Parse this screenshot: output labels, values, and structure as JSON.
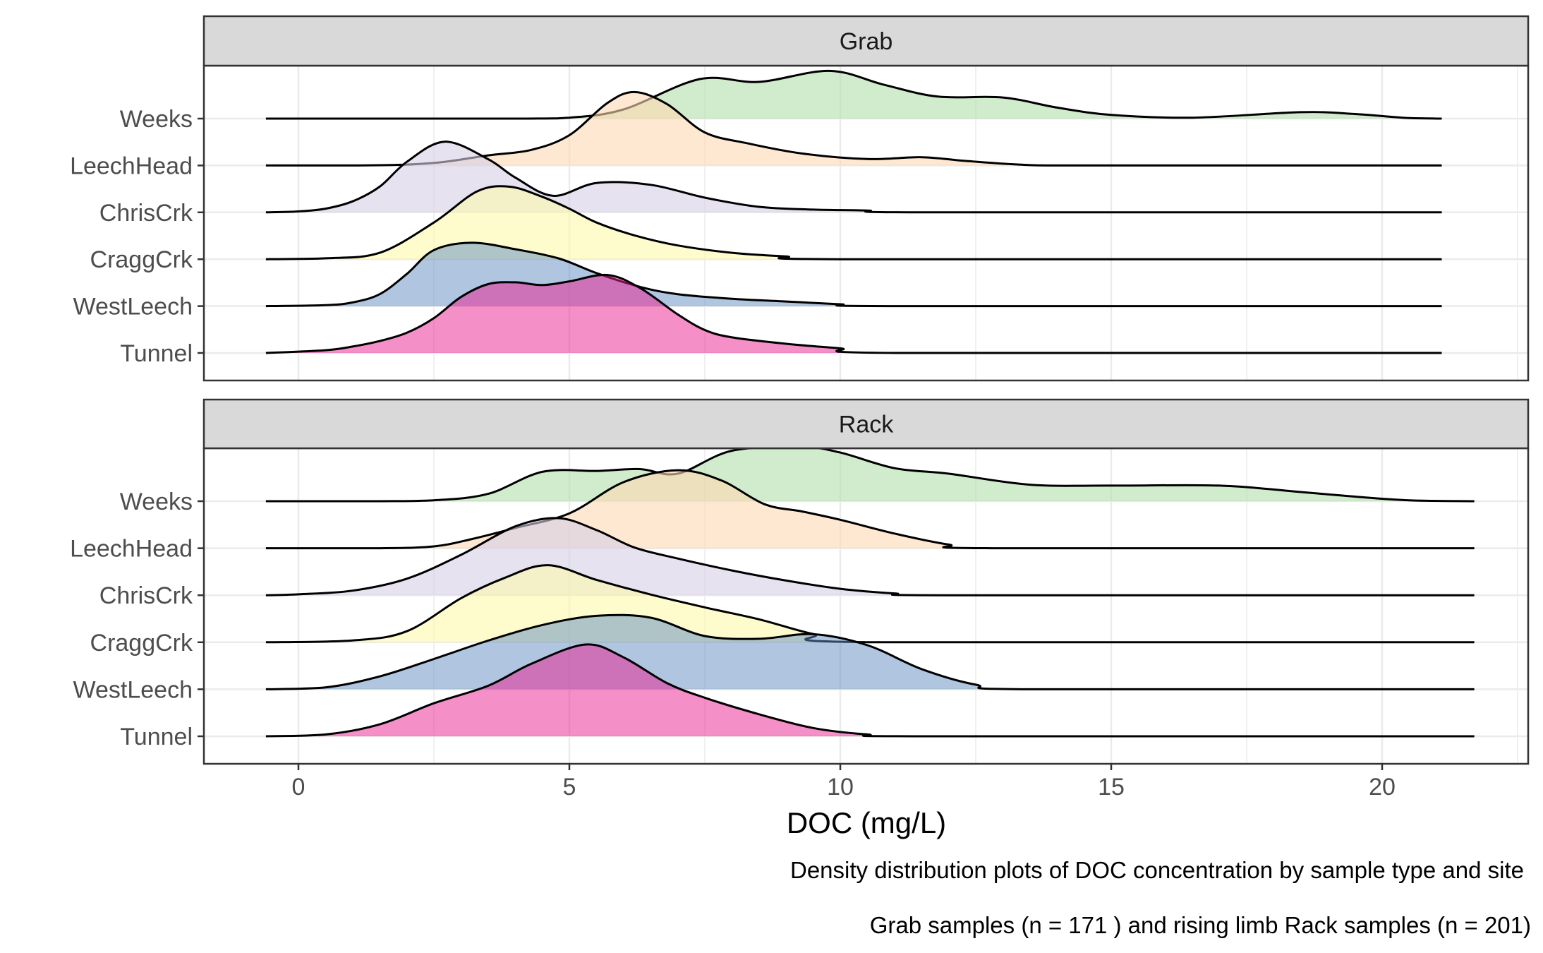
{
  "chart_data": {
    "type": "area",
    "subtype": "ridgeline density",
    "facets": [
      "Grab",
      "Rack"
    ],
    "sites": [
      "Tunnel",
      "WestLeech",
      "CraggCrk",
      "ChrisCrk",
      "LeechHead",
      "Weeks"
    ],
    "site_labels_top_to_bottom": [
      "Weeks",
      "ChrisCrk",
      "LeechHead",
      "CraggCrk",
      "WestLeech",
      "Tunnel"
    ],
    "xlabel": "DOC (mg/L)",
    "xlim": [
      -1.8,
      22.5
    ],
    "xticks": [
      0,
      5,
      10,
      15,
      20
    ],
    "grid": true,
    "colors": {
      "Weeks": "#b2dfab",
      "ChrisCrk": "#d5cee4",
      "LeechHead": "#fdd8b3",
      "CraggCrk": "#fdfaac",
      "WestLeech": "#5f8cc1",
      "Tunnel": "#ec208f",
      "strip": "#d9d9d9",
      "grid": "#ebebeb",
      "panel_border": "#333333"
    },
    "panels": [
      {
        "facet": "Grab",
        "x_range": [
          -0.6,
          21.1
        ],
        "series": [
          {
            "name": "Weeks",
            "x": [
              -0.6,
              4.0,
              5.0,
              6.0,
              7.4,
              8.5,
              9.8,
              10.8,
              11.8,
              13.0,
              14.0,
              15.0,
              16.5,
              18.5,
              19.5,
              20.5,
              21.1
            ],
            "y": [
              0,
              0,
              0.01,
              0.1,
              0.43,
              0.4,
              0.52,
              0.37,
              0.24,
              0.23,
              0.12,
              0.04,
              0.01,
              0.07,
              0.05,
              0.005,
              0
            ]
          },
          {
            "name": "ChrisCrk",
            "x": [
              -0.6,
              0.0,
              0.5,
              1.0,
              1.5,
              2.0,
              2.7,
              3.5,
              4.0,
              4.7,
              5.5,
              6.5,
              7.5,
              8.5,
              9.5,
              10.5,
              11.5,
              21.1
            ],
            "y": [
              0,
              0.01,
              0.04,
              0.12,
              0.28,
              0.55,
              0.77,
              0.58,
              0.38,
              0.18,
              0.32,
              0.3,
              0.16,
              0.06,
              0.03,
              0.02,
              0,
              0
            ]
          },
          {
            "name": "LeechHead",
            "x": [
              -0.6,
              1.0,
              2.0,
              2.7,
              3.5,
              4.3,
              5.0,
              5.7,
              6.2,
              6.8,
              7.5,
              8.3,
              9.3,
              10.5,
              11.5,
              12.3,
              13.3,
              14.5,
              21.1
            ],
            "y": [
              0,
              0,
              0.01,
              0.04,
              0.11,
              0.17,
              0.33,
              0.68,
              0.8,
              0.67,
              0.36,
              0.24,
              0.13,
              0.07,
              0.09,
              0.05,
              0.01,
              0,
              0
            ]
          },
          {
            "name": "CraggCrk",
            "x": [
              -0.6,
              0.5,
              1.5,
              2.5,
              3.3,
              3.9,
              4.5,
              5.0,
              5.5,
              6.2,
              7.0,
              8.0,
              9.0,
              10.0,
              21.1
            ],
            "y": [
              0,
              0.01,
              0.07,
              0.4,
              0.74,
              0.79,
              0.68,
              0.55,
              0.4,
              0.26,
              0.15,
              0.07,
              0.03,
              0,
              0
            ]
          },
          {
            "name": "WestLeech",
            "x": [
              -0.6,
              0.5,
              1.0,
              1.5,
              2.0,
              2.5,
              3.2,
              4.0,
              4.8,
              5.5,
              6.3,
              7.0,
              8.0,
              9.0,
              10.0,
              11.0,
              21.1
            ],
            "y": [
              0,
              0.01,
              0.04,
              0.13,
              0.35,
              0.61,
              0.69,
              0.62,
              0.52,
              0.36,
              0.21,
              0.13,
              0.08,
              0.05,
              0.02,
              0,
              0
            ]
          },
          {
            "name": "Tunnel",
            "x": [
              -0.6,
              0.5,
              1.0,
              1.5,
              2.0,
              2.5,
              3.0,
              3.5,
              4.0,
              4.5,
              5.0,
              5.7,
              6.3,
              7.0,
              7.5,
              8.0,
              9.0,
              10.0,
              11.0,
              21.1
            ],
            "y": [
              0,
              0.03,
              0.07,
              0.13,
              0.22,
              0.38,
              0.61,
              0.75,
              0.77,
              0.74,
              0.78,
              0.85,
              0.71,
              0.42,
              0.25,
              0.17,
              0.1,
              0.05,
              0,
              0
            ]
          }
        ]
      },
      {
        "facet": "Rack",
        "x_range": [
          -0.6,
          21.7
        ],
        "series": [
          {
            "name": "Weeks",
            "x": [
              -0.6,
              1.5,
              2.5,
              3.5,
              4.5,
              5.5,
              6.3,
              7.0,
              8.0,
              9.3,
              10.0,
              11.0,
              12.0,
              13.5,
              15.0,
              17.0,
              18.5,
              19.5,
              20.5,
              21.7
            ],
            "y": [
              0,
              0,
              0.01,
              0.08,
              0.32,
              0.33,
              0.35,
              0.3,
              0.55,
              0.59,
              0.53,
              0.36,
              0.3,
              0.18,
              0.17,
              0.17,
              0.1,
              0.05,
              0.01,
              0
            ]
          },
          {
            "name": "ChrisCrk",
            "x": [
              -0.6,
              0.0,
              1.0,
              2.0,
              3.0,
              4.0,
              4.8,
              5.5,
              6.2,
              7.0,
              8.0,
              9.0,
              10.0,
              11.0,
              12.0,
              21.7
            ],
            "y": [
              0,
              0.01,
              0.05,
              0.18,
              0.44,
              0.75,
              0.84,
              0.71,
              0.52,
              0.4,
              0.27,
              0.16,
              0.07,
              0.02,
              0,
              0
            ]
          },
          {
            "name": "LeechHead",
            "x": [
              -0.6,
              1.5,
              2.5,
              3.2,
              4.0,
              5.0,
              6.0,
              7.0,
              7.8,
              8.6,
              9.3,
              10.0,
              11.0,
              12.0,
              12.8,
              21.7
            ],
            "y": [
              0,
              0,
              0.02,
              0.1,
              0.22,
              0.38,
              0.72,
              0.85,
              0.74,
              0.48,
              0.4,
              0.31,
              0.16,
              0.04,
              0,
              0
            ]
          },
          {
            "name": "CraggCrk",
            "x": [
              -0.6,
              1.0,
              2.0,
              3.0,
              3.8,
              4.6,
              5.5,
              6.5,
              7.5,
              8.5,
              9.5,
              10.5,
              21.7
            ],
            "y": [
              0,
              0.02,
              0.12,
              0.48,
              0.7,
              0.84,
              0.68,
              0.52,
              0.38,
              0.25,
              0.09,
              0,
              0
            ]
          },
          {
            "name": "WestLeech",
            "x": [
              -0.6,
              0.5,
              1.5,
              2.5,
              3.5,
              4.5,
              5.5,
              6.5,
              7.5,
              8.5,
              9.5,
              10.5,
              11.5,
              12.5,
              13.5,
              21.7
            ],
            "y": [
              0,
              0.02,
              0.14,
              0.33,
              0.53,
              0.7,
              0.8,
              0.78,
              0.58,
              0.55,
              0.6,
              0.48,
              0.22,
              0.05,
              0,
              0
            ]
          },
          {
            "name": "Tunnel",
            "x": [
              -0.6,
              0.5,
              1.5,
              2.5,
              3.5,
              4.3,
              5.3,
              6.0,
              6.8,
              7.5,
              8.5,
              9.5,
              10.5,
              11.5,
              21.7
            ],
            "y": [
              0,
              0.02,
              0.13,
              0.36,
              0.55,
              0.79,
              1.0,
              0.86,
              0.58,
              0.42,
              0.24,
              0.09,
              0.02,
              0,
              0
            ]
          }
        ]
      }
    ]
  },
  "caption": {
    "line1": "Density distribution plots of DOC concentration by sample type and site",
    "line2": "Grab samples (n =  171 ) and rising limb Rack samples (n =  201)"
  }
}
